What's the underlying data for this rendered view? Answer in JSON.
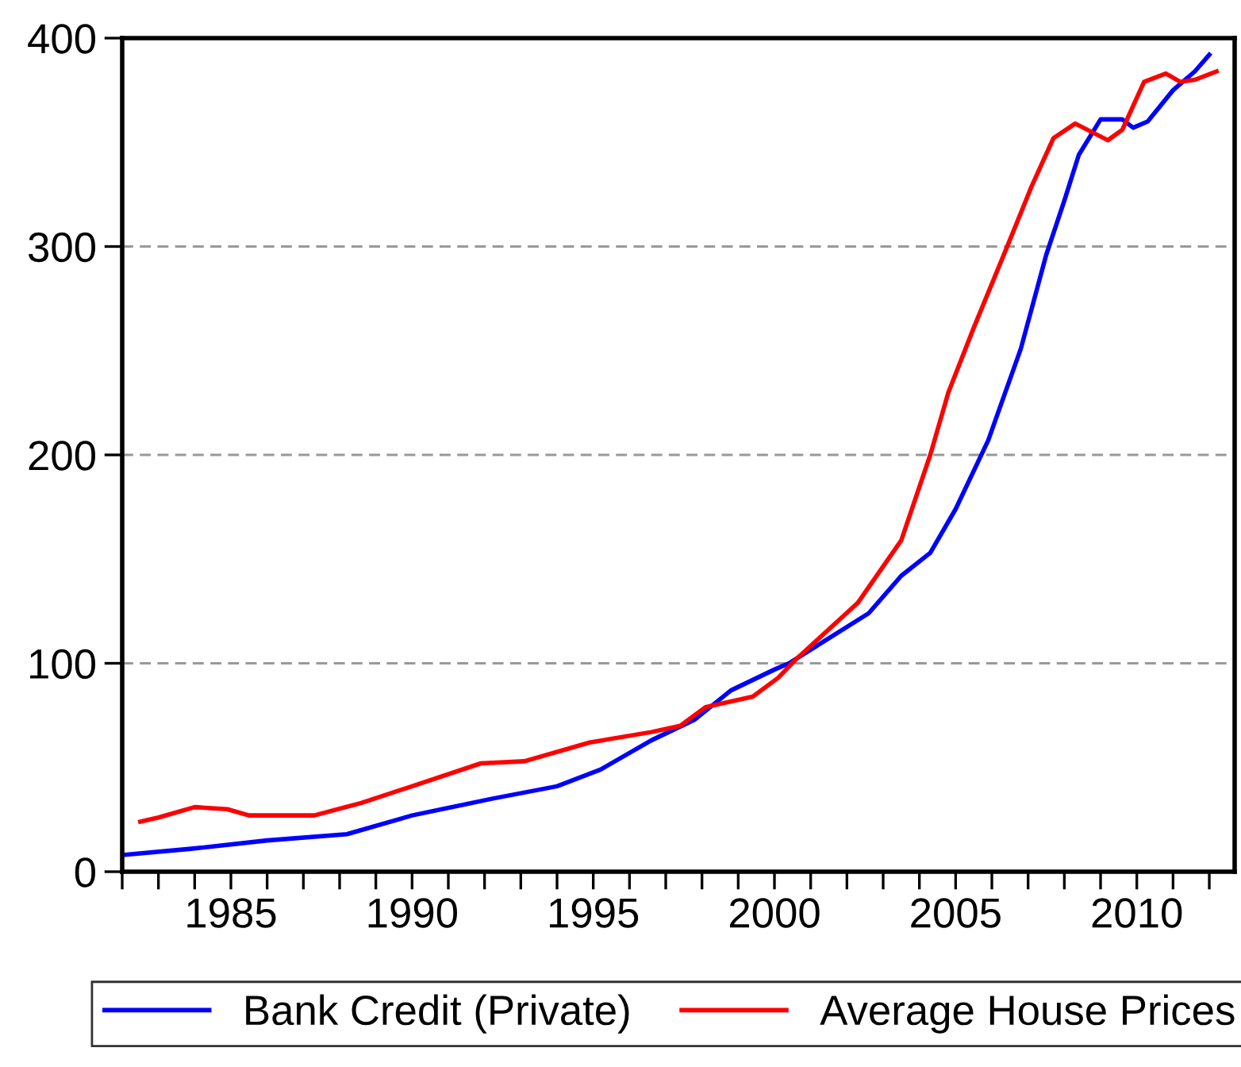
{
  "chart_data": {
    "type": "line",
    "xlim": [
      1982,
      2012.7
    ],
    "ylim": [
      0,
      400
    ],
    "xticks": [
      {
        "value": 1982,
        "label": null
      },
      {
        "value": 1983,
        "label": null
      },
      {
        "value": 1984,
        "label": null
      },
      1985,
      {
        "value": 1986,
        "label": null
      },
      {
        "value": 1987,
        "label": null
      },
      {
        "value": 1988,
        "label": null
      },
      {
        "value": 1989,
        "label": null
      },
      1990,
      {
        "value": 1991,
        "label": null
      },
      {
        "value": 1992,
        "label": null
      },
      {
        "value": 1993,
        "label": null
      },
      {
        "value": 1994,
        "label": null
      },
      1995,
      {
        "value": 1996,
        "label": null
      },
      {
        "value": 1997,
        "label": null
      },
      {
        "value": 1998,
        "label": null
      },
      {
        "value": 1999,
        "label": null
      },
      2000,
      {
        "value": 2001,
        "label": null
      },
      {
        "value": 2002,
        "label": null
      },
      {
        "value": 2003,
        "label": null
      },
      {
        "value": 2004,
        "label": null
      },
      2005,
      {
        "value": 2006,
        "label": null
      },
      {
        "value": 2007,
        "label": null
      },
      {
        "value": 2008,
        "label": null
      },
      {
        "value": 2009,
        "label": null
      },
      2010,
      {
        "value": 2011,
        "label": null
      },
      {
        "value": 2012,
        "label": null
      }
    ],
    "yticks": [
      0,
      100,
      200,
      300,
      400
    ],
    "grid": "y",
    "legend": "bottom",
    "line_style": "solid",
    "marker": "none",
    "series": [
      {
        "name": "Bank Credit (Private)",
        "color": "#0000ff",
        "x": [
          1982.0,
          1983.9,
          1986.0,
          1988.2,
          1990.0,
          1992.2,
          1994.0,
          1995.2,
          1996.6,
          1997.8,
          1998.8,
          2000.0,
          2000.4,
          2002.6,
          2003.5,
          2004.3,
          2005.0,
          2005.9,
          2006.8,
          2007.5,
          2008.0,
          2008.4,
          2009.0,
          2009.6,
          2009.9,
          2010.3,
          2011.0,
          2011.6,
          2012.0
        ],
        "values": [
          8,
          11,
          15,
          18,
          27,
          35,
          41,
          49,
          63,
          73,
          87,
          97,
          100,
          124,
          142,
          153,
          174,
          207,
          251,
          296,
          322,
          344,
          361,
          361,
          357,
          360,
          375,
          384,
          392
        ]
      },
      {
        "name": "Average House Prices",
        "color": "#ff0000",
        "x": [
          1982.5,
          1983.0,
          1984.0,
          1984.9,
          1985.5,
          1987.3,
          1988.6,
          1990.0,
          1991.9,
          1993.1,
          1994.9,
          1996.6,
          1997.4,
          1998.1,
          1999.4,
          2000.1,
          2000.6,
          2002.3,
          2003.5,
          2004.3,
          2004.8,
          2005.5,
          2006.4,
          2007.1,
          2007.7,
          2008.3,
          2009.2,
          2009.6,
          2010.2,
          2010.8,
          2011.2,
          2011.6,
          2012.2
        ],
        "values": [
          24,
          26,
          31,
          30,
          27,
          27,
          33,
          41,
          52,
          53,
          62,
          67,
          70,
          79,
          84,
          93,
          102,
          129,
          159,
          200,
          230,
          261,
          299,
          329,
          352,
          359,
          351,
          356,
          379,
          383,
          379,
          380,
          384
        ]
      }
    ]
  }
}
